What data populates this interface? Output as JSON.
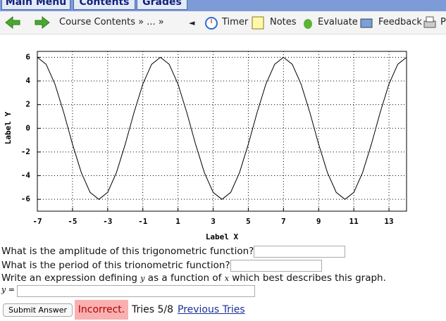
{
  "nav": {
    "tabs": [
      "Main Menu",
      "Contents",
      "Grades"
    ]
  },
  "toolbar": {
    "breadcrumb": "Course Contents » ... »",
    "back": "◄",
    "items": [
      "Timer",
      "Notes",
      "Evaluate",
      "Feedback",
      "P"
    ]
  },
  "chart_data": {
    "type": "line",
    "xlabel": "Label X",
    "ylabel": "Label Y",
    "color": "#000000",
    "grid": true,
    "x": [
      -7,
      -6.5,
      -6,
      -5.5,
      -5,
      -4.5,
      -4,
      -3.5,
      -3,
      -2.5,
      -2,
      -1.5,
      -1,
      -0.5,
      0,
      0.5,
      1,
      1.5,
      2,
      2.5,
      3,
      3.5,
      4,
      4.5,
      5,
      5.5,
      6,
      6.5,
      7,
      7.5,
      8,
      8.5,
      9,
      9.5,
      10,
      10.5,
      11,
      11.5,
      12,
      12.5,
      13,
      13.5,
      14
    ],
    "values": [
      6,
      5.41,
      3.74,
      1.34,
      -1.34,
      -3.74,
      -5.41,
      -6,
      -5.41,
      -3.74,
      -1.34,
      1.34,
      3.74,
      5.41,
      6,
      5.41,
      3.74,
      1.34,
      -1.34,
      -3.74,
      -5.41,
      -6,
      -5.41,
      -3.74,
      -1.34,
      1.34,
      3.74,
      5.41,
      6,
      5.41,
      3.74,
      1.34,
      -1.34,
      -3.74,
      -5.41,
      -6,
      -5.41,
      -3.74,
      -1.34,
      1.34,
      3.74,
      5.41,
      6
    ],
    "xlim": [
      -7,
      14
    ],
    "ylim": [
      -7,
      6.5
    ],
    "xticks": [
      -7,
      -5,
      -3,
      -1,
      1,
      3,
      5,
      7,
      9,
      11,
      13
    ],
    "yticks": [
      -6,
      -4,
      -2,
      0,
      2,
      4,
      6
    ]
  },
  "questions": {
    "q1": "What is the amplitude of this trigonometric function?",
    "q2": "What is the period of this trionometric function?",
    "q3": [
      "Write an expression defining ",
      "y",
      " as a function of ",
      "x",
      " which best describes this graph."
    ],
    "answer_label": "y ="
  },
  "footer": {
    "submit": "Submit Answer",
    "status": "Incorrect.",
    "tries": "Tries 5/8",
    "previous": "Previous Tries"
  }
}
